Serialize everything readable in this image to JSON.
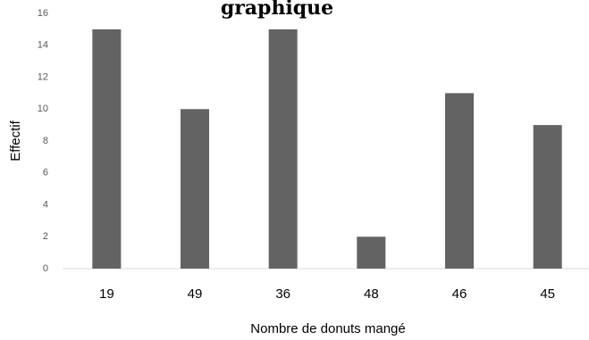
{
  "chart_data": {
    "type": "bar",
    "title": "graphique",
    "categories": [
      "19",
      "49",
      "36",
      "48",
      "46",
      "45"
    ],
    "values": [
      15,
      10,
      15,
      2,
      11,
      9
    ],
    "xlabel": "Nombre de donuts mangé",
    "ylabel": "Effectif",
    "ylim": [
      0,
      16
    ],
    "yticks": [
      "0",
      "2",
      "4",
      "6",
      "8",
      "10",
      "12",
      "14",
      "16"
    ],
    "grid": false,
    "legend": "none",
    "bar_color": "#636363",
    "axis_color": "#d9d9d9"
  }
}
